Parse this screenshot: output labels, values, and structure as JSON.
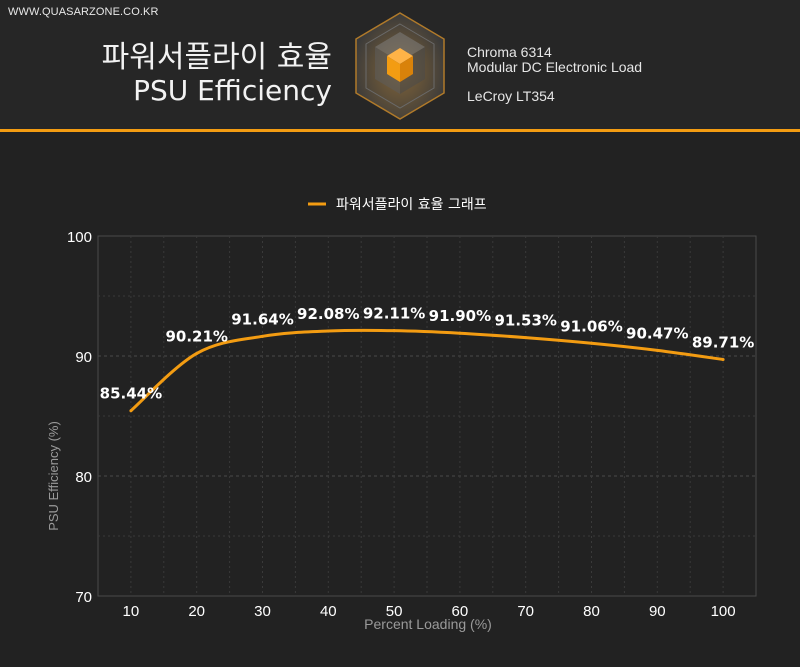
{
  "header": {
    "site": "WWW.QUASARZONE.CO.KR",
    "title_ko": "파워서플라이 효율",
    "title_en": "PSU Efficiency",
    "equipment": [
      "Chroma 6314",
      "Modular DC Electronic Load",
      "LeCroy LT354"
    ]
  },
  "colors": {
    "accent": "#f39c12",
    "background": "#222222",
    "text": "#ffffff",
    "axis_text": "#aaaaaa"
  },
  "chart_data": {
    "type": "line",
    "title": "",
    "xlabel": "Percent Loading (%)",
    "ylabel": "PSU Efficiency (%)",
    "x": [
      10,
      20,
      30,
      40,
      50,
      60,
      70,
      80,
      90,
      100
    ],
    "ylim": [
      70,
      100
    ],
    "yticks": [
      70,
      80,
      90,
      100
    ],
    "grid": true,
    "legend_position": "top-center",
    "series": [
      {
        "name": "파워서플라이 효율 그래프",
        "color": "#f39c12",
        "values": [
          85.44,
          90.21,
          91.64,
          92.08,
          92.11,
          91.9,
          91.53,
          91.06,
          90.47,
          89.71
        ],
        "labels": [
          "85.44%",
          "90.21%",
          "91.64%",
          "92.08%",
          "92.11%",
          "91.90%",
          "91.53%",
          "91.06%",
          "90.47%",
          "89.71%"
        ]
      }
    ]
  }
}
